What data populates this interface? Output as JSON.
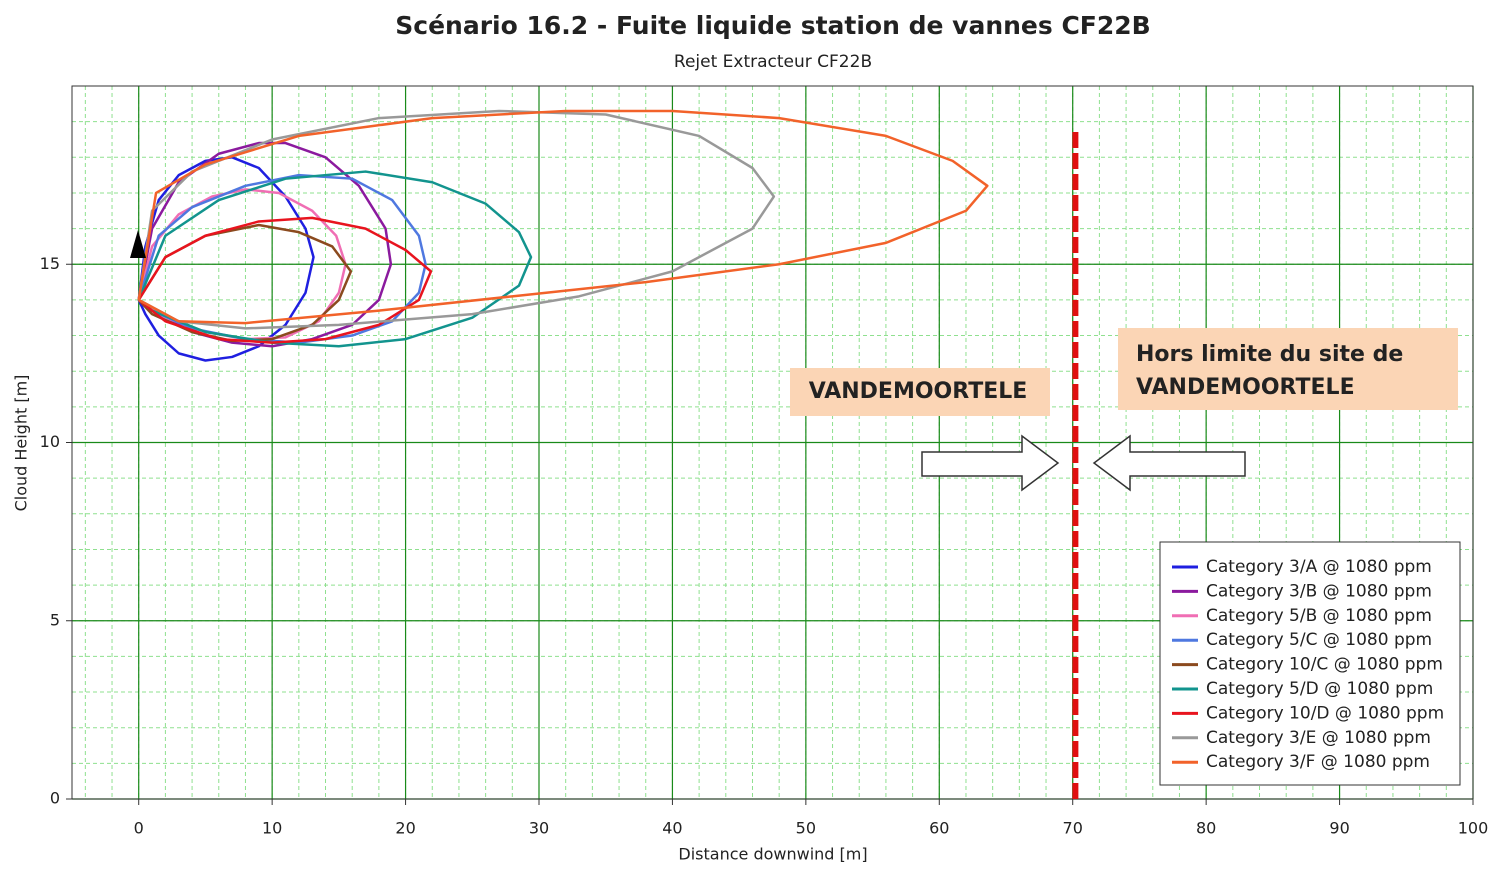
{
  "chart_data": {
    "type": "line",
    "title": "Scénario 16.2 - Fuite liquide station de vannes CF22B",
    "subtitle": "Rejet Extracteur CF22B",
    "x_label": "Distance downwind [m]",
    "y_label": "Cloud Height [m]",
    "xlim": [
      -5,
      100
    ],
    "ylim": [
      0,
      20
    ],
    "xticks": [
      0,
      10,
      20,
      30,
      40,
      50,
      60,
      70,
      80,
      90,
      100
    ],
    "yticks": [
      0,
      5,
      10,
      15
    ],
    "grid": true,
    "minor_grid": {
      "x_step": 2,
      "y_step": 1
    },
    "legend": "lower right",
    "series": [
      {
        "name": "Category 3/A @ 1080 ppm",
        "color": "#1f1fe0",
        "x": [
          0,
          0.5,
          1.5,
          3,
          5,
          7,
          9,
          11,
          12.5,
          13.1,
          12.5,
          11,
          9,
          7,
          5,
          3,
          1.5,
          0.5,
          0
        ],
        "values": [
          14,
          15.5,
          16.8,
          17.5,
          17.9,
          18.0,
          17.7,
          16.9,
          16,
          15.2,
          14.2,
          13.3,
          12.7,
          12.4,
          12.3,
          12.5,
          13,
          13.6,
          14
        ]
      },
      {
        "name": "Category 3/B @ 1080 ppm",
        "color": "#8b1a9e",
        "x": [
          0,
          1,
          3,
          6,
          9,
          11,
          14,
          16.5,
          18.5,
          18.9,
          18,
          16,
          13,
          10,
          7,
          4,
          1.5,
          0
        ],
        "values": [
          14,
          16,
          17.3,
          18.1,
          18.4,
          18.4,
          18,
          17.2,
          16,
          15,
          14,
          13.3,
          12.9,
          12.7,
          12.8,
          13.1,
          13.6,
          14
        ]
      },
      {
        "name": "Category 5/B @ 1080 ppm",
        "color": "#f06eb4",
        "x": [
          0,
          1,
          3,
          5.5,
          8,
          10.5,
          13,
          14.8,
          15.5,
          15,
          13.5,
          11,
          8,
          5,
          2,
          0
        ],
        "values": [
          14,
          15.5,
          16.4,
          16.9,
          17.1,
          17,
          16.5,
          15.8,
          15,
          14.2,
          13.4,
          12.95,
          12.9,
          13.1,
          13.5,
          14
        ]
      },
      {
        "name": "Category 5/C @ 1080 ppm",
        "color": "#4f78e0",
        "x": [
          0,
          1.5,
          4,
          8,
          12,
          16,
          19,
          21,
          21.5,
          21,
          19,
          16,
          12,
          8,
          4,
          1,
          0
        ],
        "values": [
          14,
          15.8,
          16.6,
          17.2,
          17.5,
          17.4,
          16.8,
          15.8,
          15,
          14.2,
          13.4,
          13,
          12.8,
          12.9,
          13.2,
          13.7,
          14
        ]
      },
      {
        "name": "Category 10/C @ 1080 ppm",
        "color": "#8b4a1e",
        "x": [
          0,
          2,
          5,
          9,
          12,
          14.5,
          15.9,
          15,
          13,
          10,
          7,
          4,
          1,
          0
        ],
        "values": [
          14,
          15.2,
          15.8,
          16.1,
          15.9,
          15.5,
          14.8,
          14,
          13.3,
          12.9,
          12.85,
          13.1,
          13.6,
          14
        ]
      },
      {
        "name": "Category 5/D @ 1080 ppm",
        "color": "#12948e",
        "x": [
          0,
          2,
          6,
          11,
          17,
          22,
          26,
          28.5,
          29.4,
          28.5,
          25,
          20,
          15,
          10,
          5,
          1,
          0
        ],
        "values": [
          14,
          15.8,
          16.8,
          17.4,
          17.6,
          17.3,
          16.7,
          15.9,
          15.2,
          14.4,
          13.5,
          12.9,
          12.7,
          12.8,
          13.1,
          13.7,
          14
        ]
      },
      {
        "name": "Category 10/D @ 1080 ppm",
        "color": "#e8141e",
        "x": [
          0,
          2,
          5,
          9,
          13,
          17,
          20,
          21.9,
          21,
          18,
          14,
          10,
          6,
          2,
          0
        ],
        "values": [
          14,
          15.2,
          15.8,
          16.2,
          16.3,
          16,
          15.4,
          14.8,
          14,
          13.3,
          12.9,
          12.8,
          12.9,
          13.4,
          14
        ]
      },
      {
        "name": "Category 3/E @ 1080 ppm",
        "color": "#999999",
        "x": [
          0,
          1,
          4,
          10,
          18,
          27,
          35,
          42,
          46,
          47.6,
          46,
          40,
          33,
          25,
          15,
          8,
          3,
          0
        ],
        "values": [
          14,
          16.5,
          17.6,
          18.5,
          19.1,
          19.3,
          19.2,
          18.6,
          17.7,
          16.9,
          16,
          14.8,
          14.1,
          13.6,
          13.3,
          13.2,
          13.4,
          14
        ]
      },
      {
        "name": "Category 3/F @ 1080 ppm",
        "color": "#f2622a",
        "x": [
          0,
          1.3,
          5,
          12,
          22,
          32,
          40,
          48,
          56,
          61,
          63.6,
          62,
          56,
          48,
          38,
          28,
          18,
          8,
          3,
          0
        ],
        "values": [
          14,
          17,
          17.8,
          18.6,
          19.1,
          19.3,
          19.3,
          19.1,
          18.6,
          17.9,
          17.2,
          16.5,
          15.6,
          15,
          14.5,
          14.1,
          13.7,
          13.35,
          13.4,
          14
        ]
      }
    ],
    "limit_line": {
      "x": 70.2,
      "y": [
        0,
        18.8
      ],
      "color": "#e01010"
    },
    "annotations": [
      {
        "text": [
          "VANDEMOORTELE"
        ]
      },
      {
        "text": [
          "Hors limite du site de",
          "VANDEMOORTELE"
        ]
      }
    ]
  }
}
